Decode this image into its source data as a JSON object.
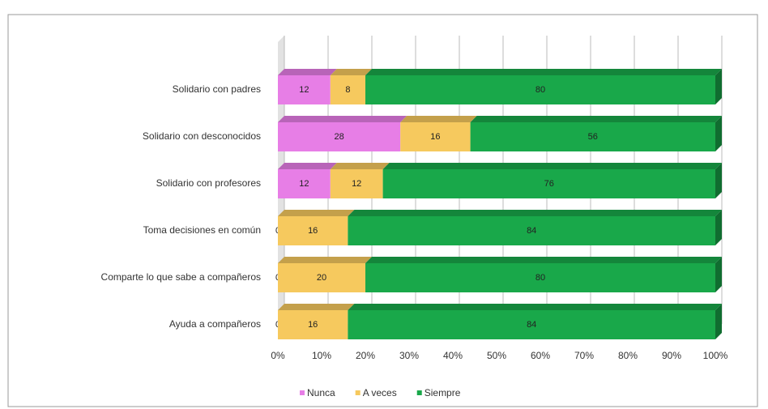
{
  "chart_data": {
    "type": "stacked-barh",
    "categories": [
      "Solidario con padres",
      "Solidario con desconocidos",
      "Solidario con profesores",
      "Toma decisiones en común",
      "Comparte lo que sabe a compañeros",
      "Ayuda a compañeros"
    ],
    "series": [
      {
        "name": "Nunca",
        "color": "#e77ee6",
        "values": [
          12,
          28,
          12,
          0,
          0,
          0
        ]
      },
      {
        "name": "A veces",
        "color": "#f6c95e",
        "values": [
          8,
          16,
          12,
          16,
          20,
          16
        ]
      },
      {
        "name": "Siempre",
        "color": "#19a84a",
        "values": [
          80,
          56,
          76,
          84,
          80,
          84
        ]
      }
    ],
    "xlim": [
      0,
      100
    ],
    "xticks": [
      {
        "value": 0,
        "label": "0%"
      },
      {
        "value": 10,
        "label": "10%"
      },
      {
        "value": 20,
        "label": "20%"
      },
      {
        "value": 30,
        "label": "30%"
      },
      {
        "value": 40,
        "label": "40%"
      },
      {
        "value": 50,
        "label": "50%"
      },
      {
        "value": 60,
        "label": "60%"
      },
      {
        "value": 70,
        "label": "70%"
      },
      {
        "value": 80,
        "label": "80%"
      },
      {
        "value": 90,
        "label": "90%"
      },
      {
        "value": 100,
        "label": "100%"
      }
    ],
    "grid": true,
    "legend": "bottom"
  }
}
